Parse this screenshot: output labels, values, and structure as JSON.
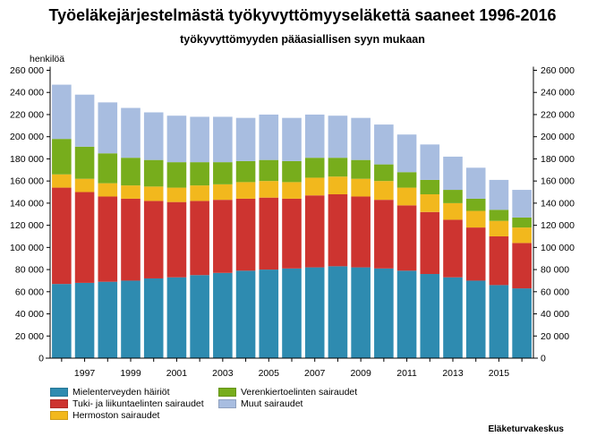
{
  "title": "Työeläkejärjestelmästä työkyvyttömyyseläkettä saaneet 1996-2016",
  "subtitle": "työkyvyttömyyden pääasiallisen syyn mukaan",
  "source": "Eläketurvakeskus",
  "chart_data": {
    "type": "bar",
    "stacked": true,
    "ylabel": "henkilöä",
    "ylim": [
      0,
      260000
    ],
    "yticks": [
      "0",
      "20 000",
      "40 000",
      "60 000",
      "80 000",
      "100 000",
      "120 000",
      "140 000",
      "160 000",
      "180 000",
      "200 000",
      "220 000",
      "240 000",
      "260 000"
    ],
    "categories": [
      "1996",
      "1997",
      "1998",
      "1999",
      "2000",
      "2001",
      "2002",
      "2003",
      "2004",
      "2005",
      "2006",
      "2007",
      "2008",
      "2009",
      "2010",
      "2011",
      "2012",
      "2013",
      "2014",
      "2015",
      "2016"
    ],
    "xticklabels": [
      "",
      "1997",
      "",
      "1999",
      "",
      "2001",
      "",
      "2003",
      "",
      "2005",
      "",
      "2007",
      "",
      "2009",
      "",
      "2011",
      "",
      "2013",
      "",
      "2015",
      ""
    ],
    "series": [
      {
        "name": "Mielenterveyden häiriöt",
        "color": "#2e8bb0",
        "values": [
          67000,
          68000,
          69000,
          70000,
          72000,
          73000,
          75000,
          77000,
          79000,
          80000,
          81000,
          82000,
          83000,
          82000,
          81000,
          79000,
          76000,
          73000,
          70000,
          66000,
          63000
        ]
      },
      {
        "name": "Tuki- ja liikuntaelinten sairaudet",
        "color": "#cd3430",
        "values": [
          87000,
          82000,
          77000,
          74000,
          70000,
          68000,
          67000,
          66000,
          65000,
          65000,
          63000,
          65000,
          65000,
          64000,
          62000,
          59000,
          56000,
          52000,
          48000,
          44000,
          41000
        ]
      },
      {
        "name": "Hermoston sairaudet",
        "color": "#f2b81d",
        "values": [
          12000,
          12000,
          12000,
          12000,
          13000,
          13000,
          14000,
          14000,
          15000,
          15000,
          15000,
          16000,
          16000,
          16000,
          17000,
          16000,
          16000,
          15000,
          15000,
          14000,
          14000
        ]
      },
      {
        "name": "Verenkiertoelinten sairaudet",
        "color": "#77ad1c",
        "values": [
          32000,
          29000,
          27000,
          25000,
          24000,
          23000,
          21000,
          20000,
          19000,
          19000,
          19000,
          18000,
          17000,
          17000,
          15000,
          14000,
          13000,
          12000,
          11000,
          10000,
          9000
        ]
      },
      {
        "name": "Muut sairaudet",
        "color": "#a8bde0",
        "values": [
          49000,
          47000,
          46000,
          45000,
          43000,
          42000,
          41000,
          41000,
          39000,
          41000,
          39000,
          39000,
          38000,
          38000,
          36000,
          34000,
          32000,
          30000,
          28000,
          27000,
          25000
        ]
      }
    ],
    "legend_order": [
      0,
      3,
      1,
      4,
      2
    ],
    "grid": false,
    "legend_position": "bottom-left"
  }
}
